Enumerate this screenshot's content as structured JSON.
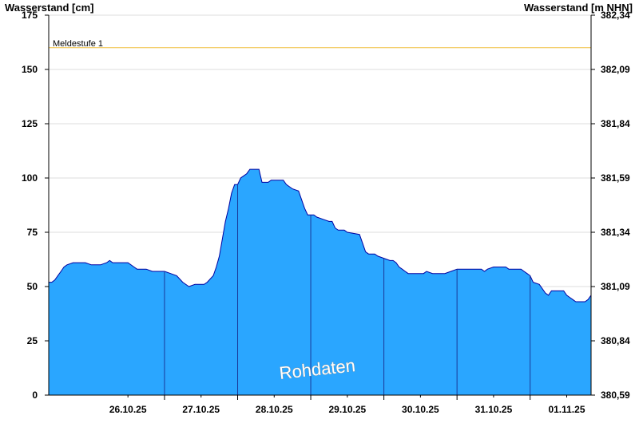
{
  "chart_data": {
    "type": "area",
    "left_axis_title": "Wasserstand [cm]",
    "right_axis_title": "Wasserstand [m NHN]",
    "ylim": [
      0,
      175
    ],
    "y_ticks": [
      0,
      25,
      50,
      75,
      100,
      125,
      150,
      175
    ],
    "right_y_tick_labels": [
      "380,59",
      "380,84",
      "381,09",
      "381,34",
      "381,59",
      "381,84",
      "382,09",
      "382,34"
    ],
    "x_range": [
      "2025-10-25T10:00",
      "2025-11-01T20:00"
    ],
    "x_tick_labels": [
      "26.10.25",
      "27.10.25",
      "28.10.25",
      "29.10.25",
      "30.10.25",
      "31.10.25",
      "01.11.25"
    ],
    "day_boundaries": [
      "2025-10-27T00:00",
      "2025-10-28T00:00",
      "2025-10-29T00:00",
      "2025-10-30T00:00",
      "2025-10-31T00:00",
      "2025-11-01T00:00"
    ],
    "reference_line": {
      "label": "Meldestufe 1",
      "value": 160,
      "color": "#f0c040"
    },
    "watermark": "Rohdaten",
    "grid": true,
    "fill_color": "#2aa6ff",
    "line_color": "#0000a0",
    "series": [
      {
        "values": [
          [
            "2025-10-25T10:00",
            52
          ],
          [
            "2025-10-25T11:00",
            52
          ],
          [
            "2025-10-25T12:00",
            53
          ],
          [
            "2025-10-25T13:00",
            55
          ],
          [
            "2025-10-25T14:00",
            57
          ],
          [
            "2025-10-25T15:00",
            59
          ],
          [
            "2025-10-25T16:00",
            60
          ],
          [
            "2025-10-25T18:00",
            61
          ],
          [
            "2025-10-25T22:00",
            61
          ],
          [
            "2025-10-26T00:00",
            60
          ],
          [
            "2025-10-26T03:00",
            60
          ],
          [
            "2025-10-26T05:00",
            61
          ],
          [
            "2025-10-26T06:00",
            62
          ],
          [
            "2025-10-26T07:00",
            61
          ],
          [
            "2025-10-26T12:00",
            61
          ],
          [
            "2025-10-26T14:00",
            59
          ],
          [
            "2025-10-26T15:00",
            58
          ],
          [
            "2025-10-26T18:00",
            58
          ],
          [
            "2025-10-26T20:00",
            57
          ],
          [
            "2025-10-27T00:00",
            57
          ],
          [
            "2025-10-27T02:00",
            56
          ],
          [
            "2025-10-27T04:00",
            55
          ],
          [
            "2025-10-27T06:00",
            52
          ],
          [
            "2025-10-27T08:00",
            50
          ],
          [
            "2025-10-27T10:00",
            51
          ],
          [
            "2025-10-27T13:00",
            51
          ],
          [
            "2025-10-27T14:00",
            52
          ],
          [
            "2025-10-27T16:00",
            55
          ],
          [
            "2025-10-27T17:00",
            59
          ],
          [
            "2025-10-27T18:00",
            64
          ],
          [
            "2025-10-27T19:00",
            72
          ],
          [
            "2025-10-27T20:00",
            80
          ],
          [
            "2025-10-27T21:00",
            86
          ],
          [
            "2025-10-27T22:00",
            93
          ],
          [
            "2025-10-27T23:00",
            97
          ],
          [
            "2025-10-28T00:00",
            97
          ],
          [
            "2025-10-28T01:00",
            100
          ],
          [
            "2025-10-28T02:00",
            101
          ],
          [
            "2025-10-28T03:00",
            102
          ],
          [
            "2025-10-28T04:00",
            104
          ],
          [
            "2025-10-28T07:00",
            104
          ],
          [
            "2025-10-28T08:00",
            98
          ],
          [
            "2025-10-28T10:00",
            98
          ],
          [
            "2025-10-28T11:00",
            99
          ],
          [
            "2025-10-28T15:00",
            99
          ],
          [
            "2025-10-28T16:00",
            97
          ],
          [
            "2025-10-28T18:00",
            95
          ],
          [
            "2025-10-28T20:00",
            94
          ],
          [
            "2025-10-28T21:00",
            90
          ],
          [
            "2025-10-28T22:00",
            86
          ],
          [
            "2025-10-28T23:00",
            83
          ],
          [
            "2025-10-29T01:00",
            83
          ],
          [
            "2025-10-29T02:00",
            82
          ],
          [
            "2025-10-29T04:00",
            81
          ],
          [
            "2025-10-29T06:00",
            80
          ],
          [
            "2025-10-29T07:00",
            80
          ],
          [
            "2025-10-29T08:00",
            77
          ],
          [
            "2025-10-29T09:00",
            76
          ],
          [
            "2025-10-29T11:00",
            76
          ],
          [
            "2025-10-29T12:00",
            75
          ],
          [
            "2025-10-29T16:00",
            74
          ],
          [
            "2025-10-29T17:00",
            70
          ],
          [
            "2025-10-29T18:00",
            66
          ],
          [
            "2025-10-29T19:00",
            65
          ],
          [
            "2025-10-29T21:00",
            65
          ],
          [
            "2025-10-29T22:00",
            64
          ],
          [
            "2025-10-30T00:00",
            63
          ],
          [
            "2025-10-30T02:00",
            62
          ],
          [
            "2025-10-30T03:00",
            62
          ],
          [
            "2025-10-30T04:00",
            61
          ],
          [
            "2025-10-30T05:00",
            59
          ],
          [
            "2025-10-30T06:00",
            58
          ],
          [
            "2025-10-30T07:00",
            57
          ],
          [
            "2025-10-30T08:00",
            56
          ],
          [
            "2025-10-30T13:00",
            56
          ],
          [
            "2025-10-30T14:00",
            57
          ],
          [
            "2025-10-30T16:00",
            56
          ],
          [
            "2025-10-30T20:00",
            56
          ],
          [
            "2025-10-30T22:00",
            57
          ],
          [
            "2025-10-31T00:00",
            58
          ],
          [
            "2025-10-31T08:00",
            58
          ],
          [
            "2025-10-31T09:00",
            57
          ],
          [
            "2025-10-31T10:00",
            58
          ],
          [
            "2025-10-31T12:00",
            59
          ],
          [
            "2025-10-31T16:00",
            59
          ],
          [
            "2025-10-31T17:00",
            58
          ],
          [
            "2025-10-31T21:00",
            58
          ],
          [
            "2025-10-31T22:00",
            57
          ],
          [
            "2025-10-31T23:00",
            56
          ],
          [
            "2025-11-01T00:00",
            55
          ],
          [
            "2025-11-01T01:00",
            52
          ],
          [
            "2025-11-01T03:00",
            51
          ],
          [
            "2025-11-01T05:00",
            47
          ],
          [
            "2025-11-01T06:00",
            46
          ],
          [
            "2025-11-01T07:00",
            48
          ],
          [
            "2025-11-01T08:00",
            48
          ],
          [
            "2025-11-01T11:00",
            48
          ],
          [
            "2025-11-01T12:00",
            46
          ],
          [
            "2025-11-01T13:00",
            45
          ],
          [
            "2025-11-01T14:00",
            44
          ],
          [
            "2025-11-01T15:00",
            43
          ],
          [
            "2025-11-01T18:00",
            43
          ],
          [
            "2025-11-01T19:00",
            44
          ],
          [
            "2025-11-01T20:00",
            46
          ]
        ]
      }
    ]
  }
}
